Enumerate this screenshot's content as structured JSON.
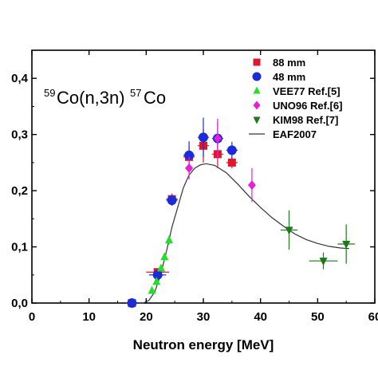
{
  "chart_data": {
    "type": "scatter",
    "annotation": {
      "pre_sup": "59",
      "element1": "Co(n,3n)",
      "post_sup": "57",
      "element2": "Co"
    },
    "xlabel": "Neutron energy [MeV]",
    "ylabel": "",
    "xlim": [
      0,
      60
    ],
    "ylim": [
      0,
      0.45
    ],
    "x_ticks": [
      0,
      10,
      20,
      30,
      40,
      50,
      60
    ],
    "x_tick_labels": [
      "0",
      "10",
      "20",
      "30",
      "40",
      "50",
      "60"
    ],
    "y_ticks": [
      0,
      0.1,
      0.2,
      0.3,
      0.4
    ],
    "y_tick_labels": [
      "0,0",
      "0,1",
      "0,2",
      "0,3",
      "0,4"
    ],
    "grid": false,
    "legend_position": "top-right",
    "series": [
      {
        "name": "88 mm",
        "marker": "square",
        "color": "#e0162b",
        "points": [
          {
            "x": 17.5,
            "y": 0.0,
            "xerr": 1.0,
            "yerr": 0.004
          },
          {
            "x": 22.0,
            "y": 0.055,
            "xerr": 2.0,
            "yerr": 0.006
          },
          {
            "x": 24.5,
            "y": 0.185,
            "xerr": 1.0,
            "yerr": 0.01
          },
          {
            "x": 27.5,
            "y": 0.26,
            "xerr": 1.0,
            "yerr": 0.02
          },
          {
            "x": 30.0,
            "y": 0.28,
            "xerr": 1.0,
            "yerr": 0.03
          },
          {
            "x": 32.5,
            "y": 0.265,
            "xerr": 1.0,
            "yerr": 0.025
          },
          {
            "x": 35.0,
            "y": 0.25,
            "xerr": 1.0,
            "yerr": 0.01
          }
        ]
      },
      {
        "name": "48 mm",
        "marker": "circle",
        "color": "#1c2bd9",
        "points": [
          {
            "x": 17.5,
            "y": 0.0,
            "xerr": 1.0,
            "yerr": 0.004
          },
          {
            "x": 22.0,
            "y": 0.05,
            "xerr": 1.5,
            "yerr": 0.006
          },
          {
            "x": 24.5,
            "y": 0.183,
            "xerr": 1.0,
            "yerr": 0.01
          },
          {
            "x": 27.5,
            "y": 0.263,
            "xerr": 1.0,
            "yerr": 0.025
          },
          {
            "x": 30.0,
            "y": 0.295,
            "xerr": 1.0,
            "yerr": 0.035
          },
          {
            "x": 32.5,
            "y": 0.293,
            "xerr": 1.0,
            "yerr": 0.03
          },
          {
            "x": 35.0,
            "y": 0.272,
            "xerr": 1.0,
            "yerr": 0.015
          }
        ]
      },
      {
        "name": "VEE77 Ref.[5]",
        "marker": "triangle-up",
        "color": "#22e02a",
        "points": [
          {
            "x": 21.0,
            "y": 0.022,
            "xerr": 0.3,
            "yerr": 0.005
          },
          {
            "x": 21.8,
            "y": 0.038,
            "xerr": 0.3,
            "yerr": 0.005
          },
          {
            "x": 22.6,
            "y": 0.062,
            "xerr": 0.3,
            "yerr": 0.006
          },
          {
            "x": 23.2,
            "y": 0.082,
            "xerr": 0.3,
            "yerr": 0.007
          },
          {
            "x": 24.0,
            "y": 0.112,
            "xerr": 0.3,
            "yerr": 0.008
          }
        ]
      },
      {
        "name": "UNO96 Ref.[6]",
        "marker": "diamond",
        "color": "#e81ed9",
        "points": [
          {
            "x": 27.5,
            "y": 0.24,
            "xerr": 0.5,
            "yerr": 0.02
          },
          {
            "x": 32.5,
            "y": 0.293,
            "xerr": 0.5,
            "yerr": 0.035
          },
          {
            "x": 38.5,
            "y": 0.21,
            "xerr": 0.5,
            "yerr": 0.03
          }
        ]
      },
      {
        "name": "KIM98  Ref.[7]",
        "marker": "triangle-down",
        "color": "#1a7a1a",
        "points": [
          {
            "x": 45.0,
            "y": 0.13,
            "xerr": 1.5,
            "yerr": 0.035
          },
          {
            "x": 51.0,
            "y": 0.075,
            "xerr": 2.5,
            "yerr": 0.015
          },
          {
            "x": 55.0,
            "y": 0.105,
            "xerr": 1.5,
            "yerr": 0.035
          }
        ]
      },
      {
        "name": "EAF2007",
        "marker": "line",
        "color": "#333333",
        "points": [
          {
            "x": 17.5,
            "y": 0.0
          },
          {
            "x": 19.5,
            "y": 0.0
          },
          {
            "x": 20.5,
            "y": 0.005
          },
          {
            "x": 21.5,
            "y": 0.02
          },
          {
            "x": 22.5,
            "y": 0.05
          },
          {
            "x": 23.5,
            "y": 0.09
          },
          {
            "x": 24.5,
            "y": 0.135
          },
          {
            "x": 25.5,
            "y": 0.17
          },
          {
            "x": 26.5,
            "y": 0.205
          },
          {
            "x": 27.5,
            "y": 0.228
          },
          {
            "x": 28.5,
            "y": 0.24
          },
          {
            "x": 29.5,
            "y": 0.246
          },
          {
            "x": 30.5,
            "y": 0.248
          },
          {
            "x": 32.0,
            "y": 0.245
          },
          {
            "x": 34.0,
            "y": 0.232
          },
          {
            "x": 36.0,
            "y": 0.212
          },
          {
            "x": 38.0,
            "y": 0.19
          },
          {
            "x": 40.0,
            "y": 0.17
          },
          {
            "x": 42.0,
            "y": 0.152
          },
          {
            "x": 44.0,
            "y": 0.137
          },
          {
            "x": 46.0,
            "y": 0.123
          },
          {
            "x": 48.0,
            "y": 0.113
          },
          {
            "x": 50.0,
            "y": 0.106
          },
          {
            "x": 52.0,
            "y": 0.101
          },
          {
            "x": 54.0,
            "y": 0.098
          },
          {
            "x": 55.5,
            "y": 0.097
          }
        ]
      }
    ]
  }
}
